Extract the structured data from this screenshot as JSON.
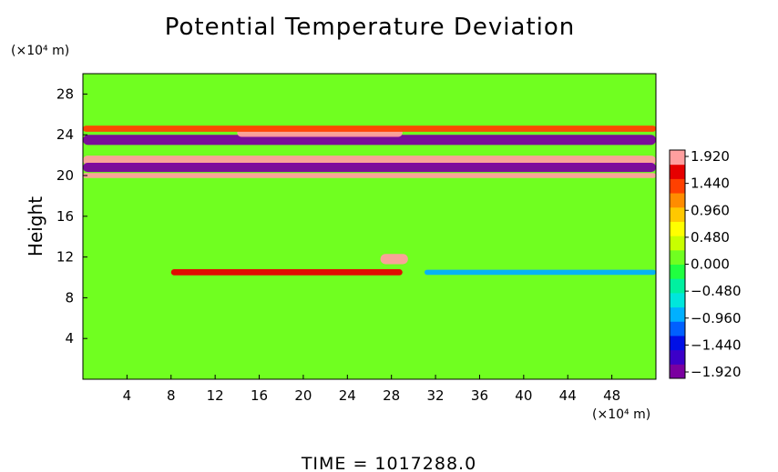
{
  "chart_data": {
    "type": "heatmap",
    "title": "Potential Temperature Deviation",
    "xlabel": "",
    "ylabel": "Height",
    "x_unit": "(×10⁴ m)",
    "y_unit": "(×10⁴ m)",
    "xlim": [
      0,
      52
    ],
    "ylim": [
      0,
      30
    ],
    "x_ticks": [
      4,
      8,
      12,
      16,
      20,
      24,
      28,
      32,
      36,
      40,
      44,
      48
    ],
    "y_ticks": [
      4,
      8,
      12,
      16,
      20,
      24,
      28
    ],
    "background_value": 0.0,
    "colorbar": {
      "ticks": [
        "1.920",
        "1.440",
        "0.960",
        "0.480",
        "0.000",
        "−0.480",
        "−0.960",
        "−1.440",
        "−1.920"
      ],
      "min": -1.92,
      "max": 1.92,
      "colors": [
        "#7a00a0",
        "#3c00c8",
        "#0010e6",
        "#0060ff",
        "#00b0ff",
        "#00e6dc",
        "#00f0a0",
        "#20ff40",
        "#70ff20",
        "#c8ff00",
        "#ffff00",
        "#ffc800",
        "#ff8c00",
        "#ff4000",
        "#e60000",
        "#ff9f9f"
      ]
    },
    "features": [
      {
        "name": "upper cold layer",
        "x_range": [
          0,
          52
        ],
        "y_center": 23.5,
        "thickness": 1.0,
        "value": -1.92
      },
      {
        "name": "upper warm layer",
        "x_range": [
          0,
          52
        ],
        "y_center": 21.5,
        "thickness": 0.9,
        "value": 1.92
      },
      {
        "name": "middle cold layer",
        "x_range": [
          0,
          52
        ],
        "y_center": 20.8,
        "thickness": 0.9,
        "value": -1.92
      },
      {
        "name": "warm lens",
        "x_range": [
          14,
          29
        ],
        "y_center": 24.2,
        "thickness": 0.8,
        "value": 1.92
      },
      {
        "name": "lower warm layer",
        "x_range": [
          0,
          52
        ],
        "y_center": 20.0,
        "thickness": 0.5,
        "value": 1.92
      },
      {
        "name": "upper warm wisps",
        "x_range": [
          0,
          52
        ],
        "y_center": 24.6,
        "thickness": 0.6,
        "value": 1.2
      },
      {
        "name": "lower mid warm streak",
        "x_range": [
          8,
          29
        ],
        "y_center": 10.5,
        "thickness": 0.6,
        "value": 1.6
      },
      {
        "name": "warm blob",
        "x_range": [
          27,
          29.5
        ],
        "y_center": 11.8,
        "thickness": 1.0,
        "value": 1.92
      },
      {
        "name": "lower mid cool streak",
        "x_range": [
          31,
          52
        ],
        "y_center": 10.5,
        "thickness": 0.5,
        "value": -0.9
      }
    ]
  },
  "footer": {
    "time_text": "TIME  =  1017288.0"
  }
}
